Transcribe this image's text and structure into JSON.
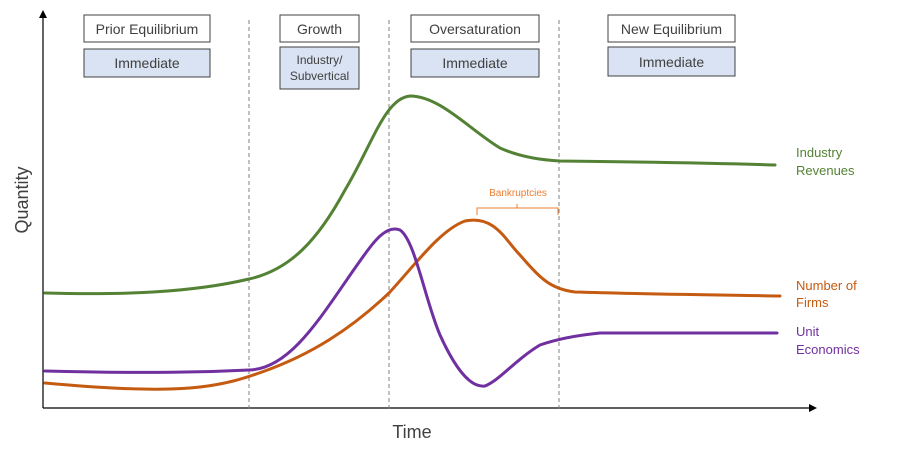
{
  "axes": {
    "x_label": "Time",
    "y_label": "Quantity"
  },
  "phases": [
    {
      "title": "Prior Equilibrium",
      "sub": [
        "Immediate"
      ]
    },
    {
      "title": "Growth",
      "sub": [
        "Industry/",
        "Subvertical"
      ]
    },
    {
      "title": "Oversaturation",
      "sub": [
        "Immediate"
      ]
    },
    {
      "title": "New Equilibrium",
      "sub": [
        "Immediate"
      ]
    }
  ],
  "series": [
    {
      "key": "revenues",
      "label": [
        "Industry",
        "Revenues"
      ],
      "color": "#548235"
    },
    {
      "key": "firms",
      "label": [
        "Number of",
        "Firms"
      ],
      "color": "#C55A11"
    },
    {
      "key": "economics",
      "label": [
        "Unit",
        "Economics"
      ],
      "color": "#7030A0"
    }
  ],
  "annotation": {
    "text": "Bankruptcies",
    "color": "#ED7D31"
  },
  "colors": {
    "axis": "#000000",
    "divider": "#808080",
    "box_fill": "#DAE3F3",
    "box_stroke": "#404040"
  }
}
